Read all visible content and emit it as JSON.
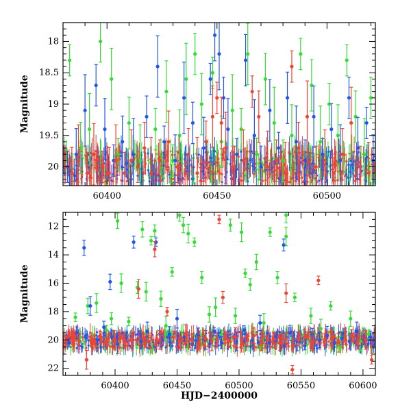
{
  "chart_data": [
    {
      "type": "scatter",
      "title": "",
      "xlabel": "",
      "ylabel": "Magnitude",
      "xlim": [
        60380,
        60522
      ],
      "ylim": [
        20.3,
        17.7
      ],
      "y_inverted": true,
      "error_bars": true,
      "xticks": [
        60400,
        60450,
        60500
      ],
      "yticks": [
        18,
        18.5,
        19,
        19.5,
        20
      ],
      "ytick_labels": [
        "18",
        "18.5",
        "19",
        "19.5",
        "20"
      ],
      "series": [
        {
          "color": "#33dd33",
          "points": [
            [
              60383,
              18.3
            ],
            [
              60388,
              19.7
            ],
            [
              60392,
              19.4
            ],
            [
              60397,
              18.0
            ],
            [
              60402,
              18.6
            ],
            [
              60405,
              19.8
            ],
            [
              60410,
              19.3
            ],
            [
              60415,
              19.9
            ],
            [
              60422,
              19.4
            ],
            [
              60427,
              18.8
            ],
            [
              60430,
              19.9
            ],
            [
              60433,
              19.5
            ],
            [
              60436,
              18.6
            ],
            [
              60440,
              18.2
            ],
            [
              60443,
              19.0
            ],
            [
              60448,
              18.5
            ],
            [
              60452,
              19.6
            ],
            [
              60457,
              19.1
            ],
            [
              60461,
              19.4
            ],
            [
              60464,
              18.2
            ],
            [
              60468,
              19.8
            ],
            [
              60472,
              18.6
            ],
            [
              60476,
              19.3
            ],
            [
              60480,
              19.9
            ],
            [
              60484,
              19.5
            ],
            [
              60488,
              18.2
            ],
            [
              60493,
              18.7
            ],
            [
              60497,
              19.6
            ],
            [
              60501,
              19.0
            ],
            [
              60505,
              19.5
            ],
            [
              60509,
              18.3
            ],
            [
              60513,
              19.2
            ],
            [
              60517,
              19.8
            ],
            [
              60520,
              18.9
            ]
          ]
        },
        {
          "color": "#2255ee",
          "points": [
            [
              60382,
              20.0
            ],
            [
              60386,
              19.8
            ],
            [
              60390,
              19.1
            ],
            [
              60395,
              18.7
            ],
            [
              60399,
              19.4
            ],
            [
              60403,
              19.9
            ],
            [
              60407,
              19.6
            ],
            [
              60412,
              19.8
            ],
            [
              60418,
              19.2
            ],
            [
              60423,
              18.4
            ],
            [
              60426,
              19.6
            ],
            [
              60431,
              19.9
            ],
            [
              60435,
              18.9
            ],
            [
              60439,
              19.3
            ],
            [
              60444,
              19.7
            ],
            [
              60447,
              18.6
            ],
            [
              60449,
              17.9
            ],
            [
              60451,
              18.2
            ],
            [
              60453,
              18.9
            ],
            [
              60455,
              19.4
            ],
            [
              60459,
              19.8
            ],
            [
              60463,
              18.3
            ],
            [
              60467,
              19.5
            ],
            [
              60470,
              20.0
            ],
            [
              60474,
              19.1
            ],
            [
              60478,
              19.7
            ],
            [
              60482,
              18.9
            ],
            [
              60486,
              19.6
            ],
            [
              60490,
              19.9
            ],
            [
              60494,
              19.2
            ],
            [
              60498,
              19.8
            ],
            [
              60502,
              19.4
            ],
            [
              60506,
              19.9
            ],
            [
              60510,
              18.9
            ],
            [
              60514,
              19.7
            ],
            [
              60518,
              19.3
            ],
            [
              60521,
              19.9
            ]
          ]
        },
        {
          "color": "#ee4433",
          "points": [
            [
              60381,
              20.0
            ],
            [
              60384,
              20.1
            ],
            [
              60387,
              19.9
            ],
            [
              60391,
              20.1
            ],
            [
              60394,
              19.8
            ],
            [
              60398,
              20.0
            ],
            [
              60401,
              20.1
            ],
            [
              60404,
              19.9
            ],
            [
              60408,
              20.1
            ],
            [
              60411,
              19.9
            ],
            [
              60414,
              20.0
            ],
            [
              60417,
              19.7
            ],
            [
              60420,
              20.1
            ],
            [
              60424,
              19.9
            ],
            [
              60428,
              19.6
            ],
            [
              60432,
              20.0
            ],
            [
              60437,
              19.8
            ],
            [
              60441,
              20.1
            ],
            [
              60445,
              19.6
            ],
            [
              60448,
              19.2
            ],
            [
              60450,
              18.9
            ],
            [
              60452,
              19.3
            ],
            [
              60454,
              19.7
            ],
            [
              60458,
              20.0
            ],
            [
              60462,
              19.9
            ],
            [
              60466,
              18.8
            ],
            [
              60469,
              19.2
            ],
            [
              60473,
              20.0
            ],
            [
              60477,
              19.9
            ],
            [
              60481,
              20.1
            ],
            [
              60484,
              18.4
            ],
            [
              60487,
              19.7
            ],
            [
              60491,
              19.2
            ],
            [
              60495,
              20.0
            ],
            [
              60499,
              19.9
            ],
            [
              60503,
              20.1
            ],
            [
              60507,
              19.8
            ],
            [
              60511,
              19.3
            ],
            [
              60515,
              20.0
            ],
            [
              60519,
              20.1
            ]
          ]
        }
      ]
    },
    {
      "type": "scatter",
      "title": "",
      "xlabel": "HJD−2400000",
      "ylabel": "Magnitude",
      "xlim": [
        60358,
        60610
      ],
      "ylim": [
        22.5,
        11.0
      ],
      "y_inverted": true,
      "error_bars": true,
      "xticks": [
        60400,
        60450,
        60500,
        60550,
        60600
      ],
      "yticks": [
        12,
        14,
        16,
        18,
        20,
        22
      ],
      "ytick_labels": [
        "12",
        "14",
        "16",
        "18",
        "20",
        "22"
      ],
      "series": [
        {
          "color": "#33dd33",
          "points": [
            [
              60368,
              18.4
            ],
            [
              60372,
              19.8
            ],
            [
              60378,
              17.6
            ],
            [
              60385,
              17.4
            ],
            [
              60393,
              19.3
            ],
            [
              60397,
              18.5
            ],
            [
              60402,
              11.6
            ],
            [
              60405,
              16.0
            ],
            [
              60411,
              18.7
            ],
            [
              60418,
              16.3
            ],
            [
              60422,
              12.2
            ],
            [
              60425,
              16.6
            ],
            [
              60429,
              13.0
            ],
            [
              60432,
              12.3
            ],
            [
              60437,
              17.1
            ],
            [
              60441,
              19.0
            ],
            [
              60446,
              15.2
            ],
            [
              60452,
              11.2
            ],
            [
              60455,
              11.9
            ],
            [
              60459,
              12.5
            ],
            [
              60464,
              13.1
            ],
            [
              60470,
              15.6
            ],
            [
              60476,
              18.2
            ],
            [
              60481,
              17.7
            ],
            [
              60486,
              19.6
            ],
            [
              60493,
              11.9
            ],
            [
              60497,
              18.3
            ],
            [
              60502,
              12.4
            ],
            [
              60505,
              15.3
            ],
            [
              60509,
              16.1
            ],
            [
              60514,
              14.5
            ],
            [
              60520,
              18.8
            ],
            [
              60525,
              12.4
            ],
            [
              60531,
              15.6
            ],
            [
              60538,
              11.2
            ],
            [
              60538,
              12.7
            ],
            [
              60545,
              17.0
            ],
            [
              60552,
              19.7
            ],
            [
              60558,
              18.3
            ],
            [
              60566,
              19.2
            ],
            [
              60574,
              17.6
            ],
            [
              60582,
              19.8
            ],
            [
              60590,
              18.5
            ],
            [
              60598,
              20.1
            ],
            [
              60605,
              19.6
            ]
          ]
        },
        {
          "color": "#2255ee",
          "points": [
            [
              60363,
              20.2
            ],
            [
              60369,
              19.5
            ],
            [
              60375,
              13.5
            ],
            [
              60380,
              17.6
            ],
            [
              60386,
              20.0
            ],
            [
              60391,
              19.1
            ],
            [
              60396,
              15.9
            ],
            [
              60402,
              20.3
            ],
            [
              60409,
              19.8
            ],
            [
              60415,
              13.1
            ],
            [
              60421,
              20.1
            ],
            [
              60426,
              19.4
            ],
            [
              60433,
              13.1
            ],
            [
              60438,
              20.0
            ],
            [
              60444,
              19.6
            ],
            [
              60450,
              18.5
            ],
            [
              60456,
              19.8
            ],
            [
              60462,
              20.3
            ],
            [
              60467,
              19.7
            ],
            [
              60473,
              20.0
            ],
            [
              60480,
              19.4
            ],
            [
              60486,
              20.2
            ],
            [
              60492,
              19.9
            ],
            [
              60498,
              20.1
            ],
            [
              60504,
              19.3
            ],
            [
              60511,
              20.0
            ],
            [
              60517,
              18.8
            ],
            [
              60523,
              20.2
            ],
            [
              60529,
              19.8
            ],
            [
              60536,
              13.3
            ],
            [
              60541,
              19.5
            ],
            [
              60547,
              20.1
            ],
            [
              60553,
              20.4
            ],
            [
              60559,
              19.6
            ],
            [
              60565,
              20.0
            ],
            [
              60571,
              19.7
            ],
            [
              60577,
              20.2
            ],
            [
              60583,
              19.9
            ],
            [
              60589,
              20.1
            ],
            [
              60595,
              19.4
            ],
            [
              60601,
              20.0
            ],
            [
              60606,
              19.8
            ]
          ]
        },
        {
          "color": "#ee4433",
          "points": [
            [
              60361,
              20.0
            ],
            [
              60366,
              19.9
            ],
            [
              60371,
              20.1
            ],
            [
              60377,
              21.4
            ],
            [
              60382,
              20.0
            ],
            [
              60388,
              19.8
            ],
            [
              60393,
              20.1
            ],
            [
              60399,
              20.0
            ],
            [
              60404,
              19.9
            ],
            [
              60408,
              20.2
            ],
            [
              60413,
              20.0
            ],
            [
              60419,
              16.4
            ],
            [
              60423,
              19.9
            ],
            [
              60427,
              20.1
            ],
            [
              60432,
              13.6
            ],
            [
              60436,
              20.0
            ],
            [
              60442,
              18.0
            ],
            [
              60447,
              19.8
            ],
            [
              60452,
              20.1
            ],
            [
              60457,
              19.6
            ],
            [
              60462,
              20.0
            ],
            [
              60468,
              20.2
            ],
            [
              60473,
              19.9
            ],
            [
              60478,
              20.1
            ],
            [
              60484,
              11.5
            ],
            [
              60487,
              17.0
            ],
            [
              60492,
              20.0
            ],
            [
              60497,
              19.8
            ],
            [
              60502,
              20.3
            ],
            [
              60507,
              20.0
            ],
            [
              60512,
              19.7
            ],
            [
              60518,
              20.1
            ],
            [
              60523,
              20.0
            ],
            [
              60528,
              19.9
            ],
            [
              60533,
              20.2
            ],
            [
              60538,
              16.7
            ],
            [
              60543,
              22.1
            ],
            [
              60548,
              20.0
            ],
            [
              60553,
              19.8
            ],
            [
              60559,
              20.1
            ],
            [
              60564,
              15.8
            ],
            [
              60569,
              20.0
            ],
            [
              60575,
              19.9
            ],
            [
              60580,
              20.2
            ],
            [
              60586,
              20.0
            ],
            [
              60591,
              19.7
            ],
            [
              60596,
              20.1
            ],
            [
              60602,
              20.0
            ],
            [
              60607,
              21.4
            ]
          ]
        }
      ]
    }
  ]
}
